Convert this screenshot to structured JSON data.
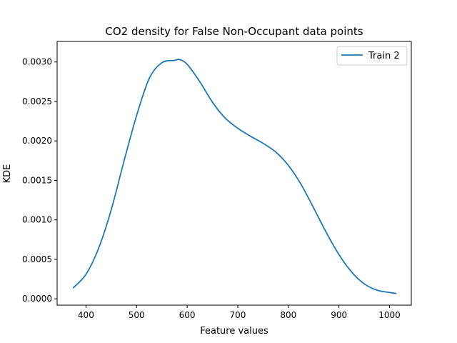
{
  "chart_data": {
    "type": "line",
    "title": "CO2 density for False Non-Occupant data points",
    "xlabel": "Feature values",
    "ylabel": "KDE",
    "xlim": [
      343,
      1043
    ],
    "ylim": [
      -8e-05,
      0.00326
    ],
    "xticks": [
      400,
      500,
      600,
      700,
      800,
      900,
      1000
    ],
    "yticks": [
      0.0,
      0.0005,
      0.001,
      0.0015,
      0.002,
      0.0025,
      0.003
    ],
    "ytick_labels": [
      "0.0000",
      "0.0005",
      "0.0010",
      "0.0015",
      "0.0020",
      "0.0025",
      "0.0030"
    ],
    "grid": false,
    "legend_position": "top-right",
    "series": [
      {
        "name": "Train 2",
        "color": "#1f77b4",
        "x": [
          375,
          400,
          425,
          450,
          475,
          500,
          525,
          550,
          575,
          585,
          600,
          625,
          650,
          675,
          700,
          725,
          750,
          775,
          800,
          825,
          850,
          875,
          900,
          925,
          950,
          975,
          1000,
          1012
        ],
        "y": [
          0.00014,
          0.00031,
          0.00064,
          0.00113,
          0.00174,
          0.00232,
          0.00279,
          0.00299,
          0.00302,
          0.00303,
          0.00297,
          0.00275,
          0.00249,
          0.00229,
          0.00216,
          0.00206,
          0.00197,
          0.00186,
          0.00169,
          0.00145,
          0.00115,
          0.00084,
          0.00056,
          0.00034,
          0.00019,
          0.00011,
          8e-05,
          7e-05
        ]
      }
    ]
  }
}
